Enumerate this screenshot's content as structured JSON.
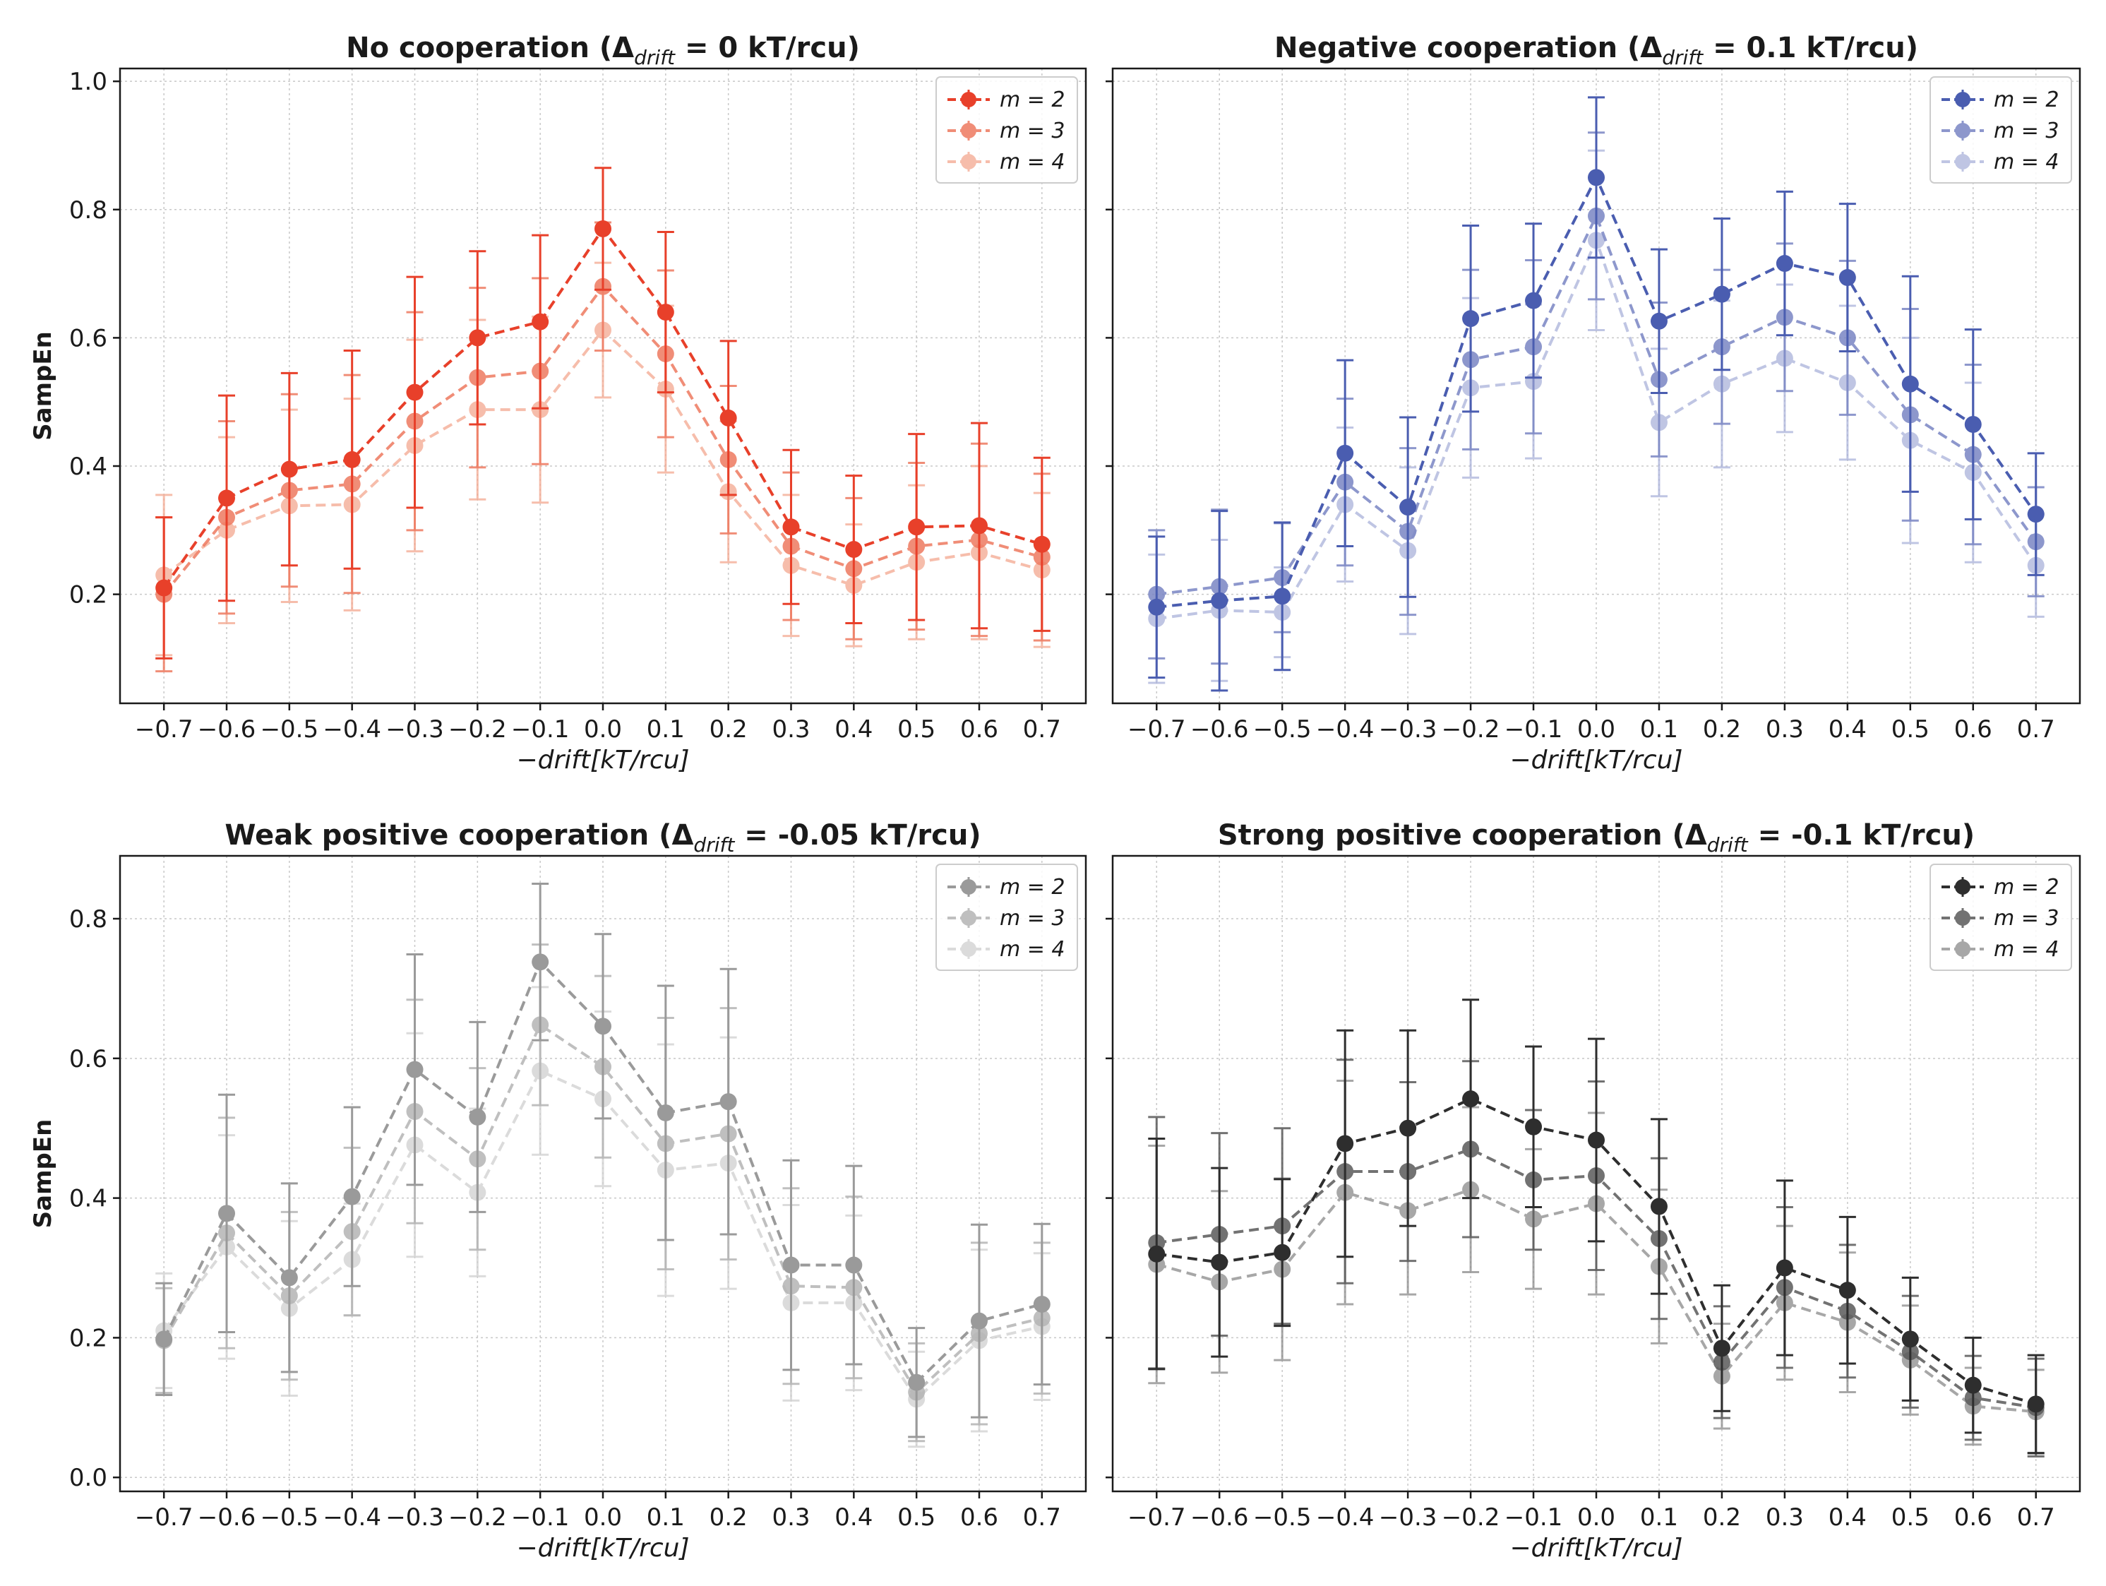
{
  "xlabel": "−drift[kT/rcu]",
  "ylabel": "SampEn",
  "chart_data": [
    {
      "type": "line",
      "title": "No cooperation (Δ",
      "title_sub": "drift",
      "title_tail": " = 0 kT/rcu)",
      "x": [
        -0.7,
        -0.6,
        -0.5,
        -0.4,
        -0.3,
        -0.2,
        -0.1,
        0.0,
        0.1,
        0.2,
        0.3,
        0.4,
        0.5,
        0.6,
        0.7
      ],
      "xticklabels": [
        "−0.7",
        "−0.6",
        "−0.5",
        "−0.4",
        "−0.3",
        "−0.2",
        "−0.1",
        "0.0",
        "0.1",
        "0.2",
        "0.3",
        "0.4",
        "0.5",
        "0.6",
        "0.7"
      ],
      "ylim": [
        0.03,
        1.02
      ],
      "yticks": [
        0.2,
        0.4,
        0.6,
        0.8,
        1.0
      ],
      "yticklabels": [
        "0.2",
        "0.4",
        "0.6",
        "0.8",
        "1.0"
      ],
      "legend": "top-right",
      "grid": true,
      "series": [
        {
          "name": "m = 2",
          "color": "#e8402a",
          "opacity": 1.0,
          "values": [
            0.21,
            0.35,
            0.395,
            0.41,
            0.515,
            0.6,
            0.625,
            0.77,
            0.64,
            0.475,
            0.305,
            0.27,
            0.305,
            0.307,
            0.278
          ],
          "err": [
            0.11,
            0.16,
            0.15,
            0.17,
            0.18,
            0.135,
            0.135,
            0.095,
            0.125,
            0.12,
            0.12,
            0.115,
            0.145,
            0.16,
            0.135
          ]
        },
        {
          "name": "m = 3",
          "color": "#ee7a60",
          "opacity": 0.85,
          "values": [
            0.2,
            0.32,
            0.362,
            0.372,
            0.47,
            0.538,
            0.548,
            0.68,
            0.575,
            0.41,
            0.275,
            0.24,
            0.275,
            0.285,
            0.258
          ],
          "err": [
            0.12,
            0.15,
            0.15,
            0.17,
            0.17,
            0.14,
            0.145,
            0.1,
            0.13,
            0.115,
            0.115,
            0.11,
            0.13,
            0.15,
            0.13
          ]
        },
        {
          "name": "m = 4",
          "color": "#f4a890",
          "opacity": 0.75,
          "values": [
            0.23,
            0.3,
            0.338,
            0.34,
            0.432,
            0.488,
            0.488,
            0.612,
            0.52,
            0.36,
            0.245,
            0.214,
            0.25,
            0.265,
            0.238
          ],
          "err": [
            0.125,
            0.145,
            0.15,
            0.165,
            0.165,
            0.14,
            0.145,
            0.105,
            0.13,
            0.11,
            0.11,
            0.095,
            0.12,
            0.135,
            0.12
          ]
        }
      ]
    },
    {
      "type": "line",
      "title": "Negative cooperation (Δ",
      "title_sub": "drift",
      "title_tail": " = 0.1 kT/rcu)",
      "x": [
        -0.7,
        -0.6,
        -0.5,
        -0.4,
        -0.3,
        -0.2,
        -0.1,
        0.0,
        0.1,
        0.2,
        0.3,
        0.4,
        0.5,
        0.6,
        0.7
      ],
      "xticklabels": [
        "−0.7",
        "−0.6",
        "−0.5",
        "−0.4",
        "−0.3",
        "−0.2",
        "−0.1",
        "0.0",
        "0.1",
        "0.2",
        "0.3",
        "0.4",
        "0.5",
        "0.6",
        "0.7"
      ],
      "ylim": [
        0.03,
        1.02
      ],
      "yticks": [
        0.2,
        0.4,
        0.6,
        0.8,
        1.0
      ],
      "yticklabels": [
        "",
        "",
        "",
        "",
        ""
      ],
      "legend": "top-right",
      "grid": true,
      "series": [
        {
          "name": "m = 2",
          "color": "#4a5db0",
          "opacity": 1.0,
          "values": [
            0.18,
            0.19,
            0.197,
            0.42,
            0.336,
            0.63,
            0.658,
            0.85,
            0.626,
            0.668,
            0.716,
            0.694,
            0.528,
            0.465,
            0.325
          ],
          "err": [
            0.11,
            0.14,
            0.115,
            0.145,
            0.14,
            0.145,
            0.12,
            0.125,
            0.112,
            0.118,
            0.112,
            0.115,
            0.168,
            0.148,
            0.095
          ]
        },
        {
          "name": "m = 3",
          "color": "#7a86c4",
          "opacity": 0.85,
          "values": [
            0.2,
            0.212,
            0.226,
            0.375,
            0.298,
            0.566,
            0.586,
            0.79,
            0.535,
            0.586,
            0.632,
            0.6,
            0.48,
            0.418,
            0.282
          ],
          "err": [
            0.1,
            0.12,
            0.085,
            0.13,
            0.13,
            0.14,
            0.135,
            0.13,
            0.12,
            0.12,
            0.115,
            0.12,
            0.165,
            0.14,
            0.085
          ]
        },
        {
          "name": "m = 4",
          "color": "#aab2da",
          "opacity": 0.75,
          "values": [
            0.162,
            0.175,
            0.172,
            0.34,
            0.268,
            0.522,
            0.532,
            0.752,
            0.468,
            0.528,
            0.568,
            0.53,
            0.44,
            0.39,
            0.245
          ],
          "err": [
            0.1,
            0.11,
            0.07,
            0.12,
            0.13,
            0.14,
            0.12,
            0.14,
            0.115,
            0.13,
            0.115,
            0.12,
            0.16,
            0.14,
            0.08
          ]
        }
      ]
    },
    {
      "type": "line",
      "title": "Weak positive cooperation (Δ",
      "title_sub": "drift",
      "title_tail": " = -0.05 kT/rcu)",
      "x": [
        -0.7,
        -0.6,
        -0.5,
        -0.4,
        -0.3,
        -0.2,
        -0.1,
        0.0,
        0.1,
        0.2,
        0.3,
        0.4,
        0.5,
        0.6,
        0.7
      ],
      "xticklabels": [
        "−0.7",
        "−0.6",
        "−0.5",
        "−0.4",
        "−0.3",
        "−0.2",
        "−0.1",
        "0.0",
        "0.1",
        "0.2",
        "0.3",
        "0.4",
        "0.5",
        "0.6",
        "0.7"
      ],
      "ylim": [
        -0.02,
        0.89
      ],
      "yticks": [
        0.0,
        0.2,
        0.4,
        0.6,
        0.8
      ],
      "yticklabels": [
        "0.0",
        "0.2",
        "0.4",
        "0.6",
        "0.8"
      ],
      "legend": "top-right",
      "grid": true,
      "series": [
        {
          "name": "m = 2",
          "color": "#9a9a9a",
          "opacity": 1.0,
          "values": [
            0.198,
            0.378,
            0.286,
            0.402,
            0.584,
            0.516,
            0.738,
            0.646,
            0.522,
            0.538,
            0.304,
            0.304,
            0.136,
            0.224,
            0.248
          ],
          "err": [
            0.08,
            0.17,
            0.135,
            0.128,
            0.165,
            0.136,
            0.112,
            0.132,
            0.182,
            0.19,
            0.15,
            0.142,
            0.078,
            0.138,
            0.115
          ]
        },
        {
          "name": "m = 3",
          "color": "#b4b4b4",
          "opacity": 0.85,
          "values": [
            0.196,
            0.35,
            0.26,
            0.352,
            0.524,
            0.456,
            0.648,
            0.588,
            0.478,
            0.492,
            0.274,
            0.272,
            0.122,
            0.206,
            0.228
          ],
          "err": [
            0.075,
            0.165,
            0.12,
            0.12,
            0.16,
            0.13,
            0.115,
            0.13,
            0.18,
            0.18,
            0.14,
            0.13,
            0.07,
            0.13,
            0.108
          ]
        },
        {
          "name": "m = 4",
          "color": "#d0d0d0",
          "opacity": 0.75,
          "values": [
            0.21,
            0.33,
            0.242,
            0.312,
            0.476,
            0.408,
            0.582,
            0.542,
            0.44,
            0.45,
            0.25,
            0.25,
            0.112,
            0.196,
            0.216
          ],
          "err": [
            0.082,
            0.16,
            0.125,
            0.08,
            0.16,
            0.12,
            0.12,
            0.125,
            0.18,
            0.18,
            0.14,
            0.125,
            0.068,
            0.13,
            0.105
          ]
        }
      ]
    },
    {
      "type": "line",
      "title": "Strong positive cooperation (Δ",
      "title_sub": "drift",
      "title_tail": " = -0.1 kT/rcu)",
      "x": [
        -0.7,
        -0.6,
        -0.5,
        -0.4,
        -0.3,
        -0.2,
        -0.1,
        0.0,
        0.1,
        0.2,
        0.3,
        0.4,
        0.5,
        0.6,
        0.7
      ],
      "xticklabels": [
        "−0.7",
        "−0.6",
        "−0.5",
        "−0.4",
        "−0.3",
        "−0.2",
        "−0.1",
        "0.0",
        "0.1",
        "0.2",
        "0.3",
        "0.4",
        "0.5",
        "0.6",
        "0.7"
      ],
      "ylim": [
        -0.02,
        0.89
      ],
      "yticks": [
        0.0,
        0.2,
        0.4,
        0.6,
        0.8
      ],
      "yticklabels": [
        "",
        "",
        "",
        "",
        ""
      ],
      "legend": "top-right",
      "grid": true,
      "series": [
        {
          "name": "m = 2",
          "color": "#2e2e2e",
          "opacity": 1.0,
          "values": [
            0.32,
            0.308,
            0.322,
            0.478,
            0.5,
            0.542,
            0.502,
            0.483,
            0.388,
            0.185,
            0.3,
            0.268,
            0.198,
            0.132,
            0.105
          ],
          "err": [
            0.165,
            0.135,
            0.105,
            0.162,
            0.14,
            0.142,
            0.115,
            0.145,
            0.125,
            0.09,
            0.125,
            0.105,
            0.088,
            0.068,
            0.07
          ]
        },
        {
          "name": "m = 3",
          "color": "#5a5a5a",
          "opacity": 0.85,
          "values": [
            0.336,
            0.348,
            0.36,
            0.438,
            0.438,
            0.47,
            0.426,
            0.432,
            0.342,
            0.165,
            0.272,
            0.238,
            0.18,
            0.114,
            0.1
          ],
          "err": [
            0.18,
            0.145,
            0.14,
            0.16,
            0.128,
            0.126,
            0.1,
            0.135,
            0.115,
            0.08,
            0.115,
            0.095,
            0.08,
            0.06,
            0.07
          ]
        },
        {
          "name": "m = 4",
          "color": "#8a8a8a",
          "opacity": 0.75,
          "values": [
            0.305,
            0.28,
            0.298,
            0.408,
            0.382,
            0.412,
            0.37,
            0.392,
            0.302,
            0.145,
            0.25,
            0.222,
            0.168,
            0.102,
            0.094
          ],
          "err": [
            0.17,
            0.13,
            0.13,
            0.16,
            0.12,
            0.118,
            0.1,
            0.13,
            0.11,
            0.075,
            0.11,
            0.1,
            0.078,
            0.055,
            0.06
          ]
        }
      ]
    }
  ]
}
